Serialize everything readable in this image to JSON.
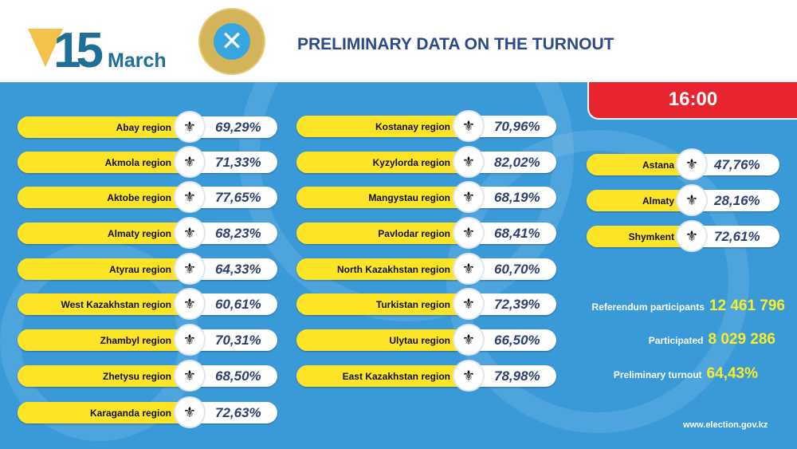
{
  "header": {
    "logo_number": "15",
    "logo_month": "March",
    "title": "PRELIMINARY DATA ON THE TURNOUT"
  },
  "time": "16:00",
  "colors": {
    "panel": "#3a9ad8",
    "pill_yellow": "#fde427",
    "time_red": "#e8252f",
    "stat_yellow": "#f6ee2a",
    "title_blue": "#2b4a86"
  },
  "regions_left": [
    {
      "name": "Abay  region",
      "turnout": "69,29%",
      "icon": "abay-emblem-icon"
    },
    {
      "name": "Akmola  region",
      "turnout": "71,33%",
      "icon": "akmola-emblem-icon"
    },
    {
      "name": "Aktobe region",
      "turnout": "77,65%",
      "icon": "aktobe-emblem-icon"
    },
    {
      "name": "Almaty  region",
      "turnout": "68,23%",
      "icon": "almaty-region-emblem-icon"
    },
    {
      "name": "Atyrau  region",
      "turnout": "64,33%",
      "icon": "atyrau-emblem-icon"
    },
    {
      "name": "West Kazakhstan region",
      "turnout": "60,61%",
      "icon": "west-kazakhstan-emblem-icon"
    },
    {
      "name": "Zhambyl  region",
      "turnout": "70,31%",
      "icon": "zhambyl-emblem-icon"
    },
    {
      "name": "Zhetysu  region",
      "turnout": "68,50%",
      "icon": "zhetysu-emblem-icon"
    },
    {
      "name": "Karaganda region",
      "turnout": "72,63%",
      "icon": "karaganda-emblem-icon"
    }
  ],
  "regions_middle": [
    {
      "name": "Kostanay region",
      "turnout": "70,96%",
      "icon": "kostanay-emblem-icon"
    },
    {
      "name": "Kyzylorda region",
      "turnout": "82,02%",
      "icon": "kyzylorda-emblem-icon"
    },
    {
      "name": "Mangystau region",
      "turnout": "68,19%",
      "icon": "mangystau-emblem-icon"
    },
    {
      "name": "Pavlodar region",
      "turnout": "68,41%",
      "icon": "pavlodar-emblem-icon"
    },
    {
      "name": "North Kazakhstan region",
      "turnout": "60,70%",
      "icon": "north-kazakhstan-emblem-icon"
    },
    {
      "name": "Turkistan region",
      "turnout": "72,39%",
      "icon": "turkistan-emblem-icon"
    },
    {
      "name": "Ulytau region",
      "turnout": "66,50%",
      "icon": "ulytau-emblem-icon"
    },
    {
      "name": "East Kazakhstan region",
      "turnout": "78,98%",
      "icon": "east-kazakhstan-emblem-icon"
    }
  ],
  "cities": [
    {
      "name": "Astana",
      "turnout": "47,76%",
      "icon": "astana-emblem-icon"
    },
    {
      "name": "Almaty",
      "turnout": "28,16%",
      "icon": "almaty-emblem-icon"
    },
    {
      "name": "Shymkent",
      "turnout": "72,61%",
      "icon": "shymkent-emblem-icon"
    }
  ],
  "stats": {
    "participants_label": "Referendum participants",
    "participants_value": "12 461 796",
    "participated_label": "Participated",
    "participated_value": "8 029 286",
    "turnout_label": "Preliminary turnout",
    "turnout_value": "64,43%"
  },
  "website": "www.election.gov.kz"
}
